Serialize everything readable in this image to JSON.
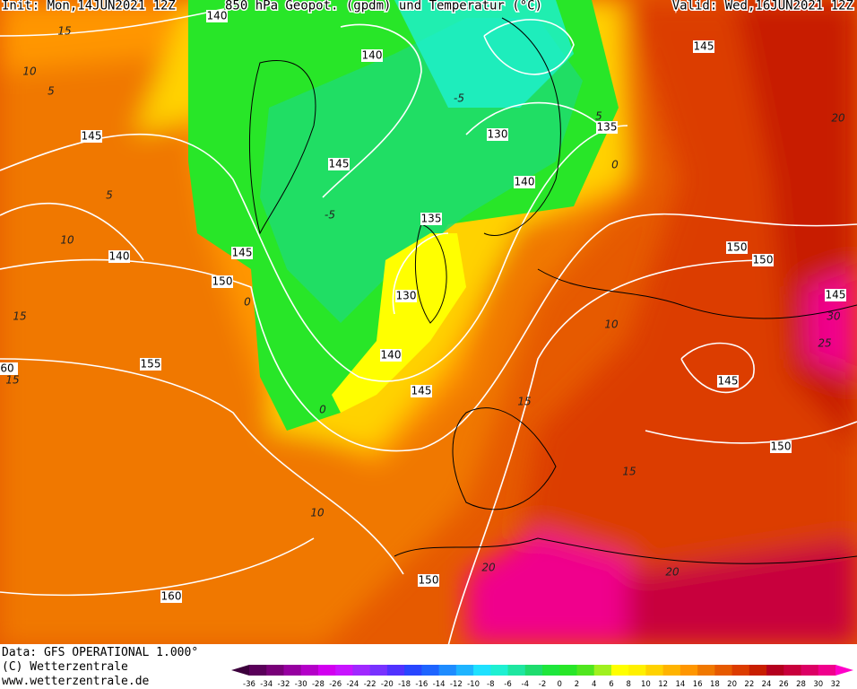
{
  "header": {
    "init": "Init: Mon,14JUN2021 12Z",
    "title": "850 hPa Geopot. (gpdm) und Temperatur (°C)",
    "valid": "Valid: Wed,16JUN2021 12Z"
  },
  "geopotential_labels": [
    140,
    145,
    140,
    135,
    130,
    145,
    145,
    140,
    135,
    150,
    150,
    140,
    145,
    150,
    145,
    130,
    155,
    140,
    145,
    145,
    150,
    150,
    160,
    60
  ],
  "temperature_labels": [
    15,
    10,
    5,
    5,
    10,
    15,
    15,
    -5,
    -5,
    10,
    15,
    15,
    10,
    20,
    20,
    20,
    25,
    30,
    0,
    0,
    0,
    5
  ],
  "footer": {
    "data": "Data: GFS OPERATIONAL 1.000°",
    "copyright": "(C) Wetterzentrale",
    "url": "www.wetterzentrale.de"
  },
  "colorbar": {
    "ticks": [
      -36,
      -34,
      -32,
      -30,
      -28,
      -26,
      -24,
      -22,
      -20,
      -18,
      -16,
      -14,
      -12,
      -10,
      -8,
      -6,
      -4,
      -2,
      0,
      2,
      4,
      6,
      8,
      10,
      12,
      14,
      16,
      18,
      20,
      22,
      24,
      26,
      28,
      30,
      32
    ],
    "colors": [
      "#3c003c",
      "#5a005a",
      "#780078",
      "#9600a0",
      "#b400c8",
      "#d200f0",
      "#c814ff",
      "#a028ff",
      "#7832ff",
      "#5032ff",
      "#2846ff",
      "#1e64ff",
      "#1e8cff",
      "#1eb4ff",
      "#1ee1ff",
      "#1ef0d2",
      "#1ee6a0",
      "#1edc6e",
      "#1ee63c",
      "#28e628",
      "#50e61e",
      "#a0f01e",
      "#ffff00",
      "#fff000",
      "#ffd200",
      "#ffb400",
      "#ff9600",
      "#f07800",
      "#e65a00",
      "#dc3c00",
      "#c81e00",
      "#b4001e",
      "#c8003c",
      "#dc0064",
      "#f0008c",
      "#ff00c8"
    ]
  }
}
